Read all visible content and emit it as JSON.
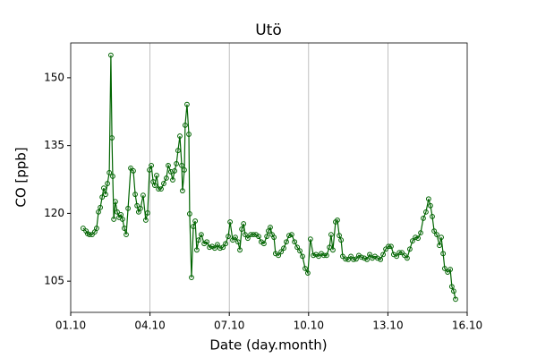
{
  "chart_data": {
    "type": "line",
    "title": "Utö",
    "x_label": "Date (day.month)",
    "y_label": "CO [ppb]",
    "xlim": [
      1,
      16
    ],
    "ylim": [
      98.1,
      157.7
    ],
    "xticks": [
      {
        "value": 1,
        "label": "01.10"
      },
      {
        "value": 4,
        "label": "04.10"
      },
      {
        "value": 7,
        "label": "07.10"
      },
      {
        "value": 10,
        "label": "10.10"
      },
      {
        "value": 13,
        "label": "13.10"
      },
      {
        "value": 16,
        "label": "16.10"
      }
    ],
    "yticks": [
      105,
      120,
      135,
      150
    ],
    "grid": "x",
    "color": "#006400",
    "x": [
      1.47,
      1.58,
      1.64,
      1.71,
      1.81,
      1.91,
      1.98,
      2.05,
      2.12,
      2.19,
      2.25,
      2.32,
      2.39,
      2.46,
      2.52,
      2.56,
      2.59,
      2.63,
      2.69,
      2.76,
      2.83,
      2.9,
      2.96,
      3.03,
      3.1,
      3.17,
      3.27,
      3.37,
      3.44,
      3.51,
      3.57,
      3.64,
      3.74,
      3.84,
      3.91,
      3.98,
      4.05,
      4.12,
      4.18,
      4.25,
      4.32,
      4.42,
      4.52,
      4.62,
      4.69,
      4.79,
      4.86,
      4.93,
      5.0,
      5.06,
      5.13,
      5.2,
      5.23,
      5.3,
      5.33,
      5.4,
      5.47,
      5.5,
      5.57,
      5.64,
      5.71,
      5.77,
      5.84,
      5.94,
      6.05,
      6.15,
      6.25,
      6.35,
      6.45,
      6.55,
      6.65,
      6.76,
      6.86,
      6.96,
      7.03,
      7.13,
      7.23,
      7.33,
      7.4,
      7.47,
      7.54,
      7.6,
      7.7,
      7.81,
      7.91,
      8.01,
      8.11,
      8.21,
      8.31,
      8.42,
      8.48,
      8.55,
      8.62,
      8.69,
      8.75,
      8.86,
      8.96,
      9.06,
      9.16,
      9.26,
      9.36,
      9.47,
      9.57,
      9.67,
      9.77,
      9.87,
      9.97,
      10.07,
      10.18,
      10.28,
      10.38,
      10.48,
      10.58,
      10.68,
      10.79,
      10.85,
      10.92,
      11.02,
      11.09,
      11.16,
      11.23,
      11.29,
      11.4,
      11.5,
      11.6,
      11.7,
      11.8,
      11.9,
      12.0,
      12.11,
      12.21,
      12.31,
      12.41,
      12.51,
      12.61,
      12.72,
      12.82,
      12.92,
      13.02,
      13.12,
      13.22,
      13.33,
      13.43,
      13.53,
      13.63,
      13.73,
      13.83,
      13.93,
      14.04,
      14.14,
      14.24,
      14.34,
      14.44,
      14.54,
      14.61,
      14.68,
      14.75,
      14.85,
      14.95,
      15.02,
      15.09,
      15.15,
      15.26,
      15.36,
      15.42,
      15.49,
      15.56
    ],
    "values": [
      116.7,
      116.1,
      115.5,
      115.3,
      115.3,
      115.9,
      116.7,
      120.3,
      121.3,
      123.6,
      125.6,
      124.2,
      126.6,
      129.0,
      155.0,
      136.7,
      128.2,
      118.7,
      122.6,
      120.3,
      119.1,
      119.7,
      118.7,
      116.7,
      115.3,
      121.1,
      130.0,
      129.4,
      124.2,
      121.7,
      120.3,
      121.1,
      124.0,
      118.5,
      120.1,
      129.6,
      130.6,
      127.0,
      126.2,
      128.4,
      125.4,
      125.4,
      126.6,
      127.8,
      130.6,
      129.2,
      127.4,
      129.4,
      131.0,
      133.9,
      137.1,
      130.6,
      125.0,
      129.6,
      139.5,
      144.1,
      137.5,
      119.9,
      105.8,
      117.1,
      118.3,
      111.9,
      114.1,
      115.3,
      113.3,
      113.7,
      112.5,
      112.7,
      112.3,
      113.1,
      112.3,
      112.5,
      113.3,
      114.9,
      118.1,
      114.1,
      114.7,
      113.7,
      111.9,
      116.5,
      117.7,
      115.3,
      114.5,
      115.3,
      115.3,
      115.3,
      114.9,
      113.7,
      113.3,
      114.9,
      116.1,
      116.9,
      115.3,
      114.7,
      111.1,
      110.7,
      111.5,
      112.3,
      113.7,
      115.1,
      115.3,
      113.7,
      112.5,
      111.7,
      110.5,
      107.8,
      106.8,
      114.3,
      110.7,
      110.9,
      110.5,
      111.1,
      110.7,
      110.7,
      112.5,
      115.3,
      111.9,
      118.1,
      118.5,
      115.1,
      114.1,
      110.5,
      109.9,
      109.8,
      110.5,
      109.8,
      109.9,
      110.7,
      110.3,
      110.1,
      109.8,
      110.9,
      110.1,
      110.5,
      110.1,
      109.8,
      110.9,
      112.1,
      112.7,
      112.7,
      110.9,
      110.5,
      111.3,
      111.3,
      110.7,
      110.1,
      112.1,
      113.9,
      114.7,
      114.5,
      115.7,
      118.9,
      120.3,
      123.2,
      121.7,
      119.3,
      116.1,
      115.3,
      112.9,
      114.7,
      111.1,
      107.8,
      107.0,
      107.6,
      103.8,
      102.8,
      101.0
    ]
  }
}
